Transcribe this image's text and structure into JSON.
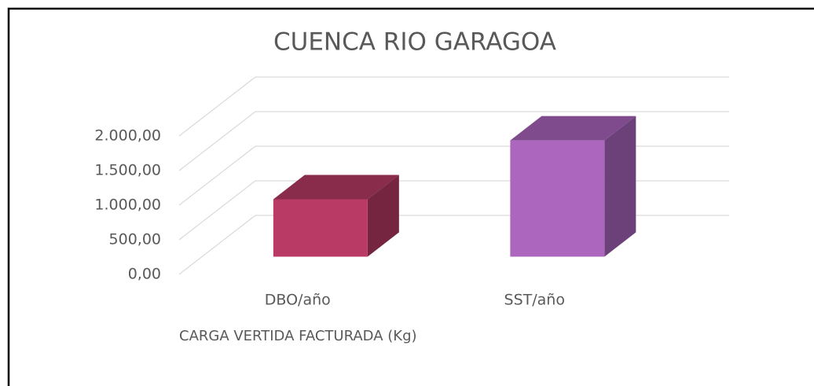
{
  "chart_data": {
    "type": "bar3d",
    "title": "CUENCA RIO GARAGOA",
    "x_label": "CARGA VERTIDA FACTURADA (Kg)",
    "categories": [
      "DBO/año",
      "SST/año"
    ],
    "values": [
      830,
      1680
    ],
    "colors": [
      "#b93a64",
      "#ac66be"
    ],
    "ylim": [
      0,
      2000
    ],
    "yticks": [
      {
        "value": 0,
        "label": "0,00"
      },
      {
        "value": 500,
        "label": "500,00"
      },
      {
        "value": 1000,
        "label": "1.000,00"
      },
      {
        "value": 1500,
        "label": "1.500,00"
      },
      {
        "value": 2000,
        "label": "2.000,00"
      }
    ],
    "grid": true
  }
}
